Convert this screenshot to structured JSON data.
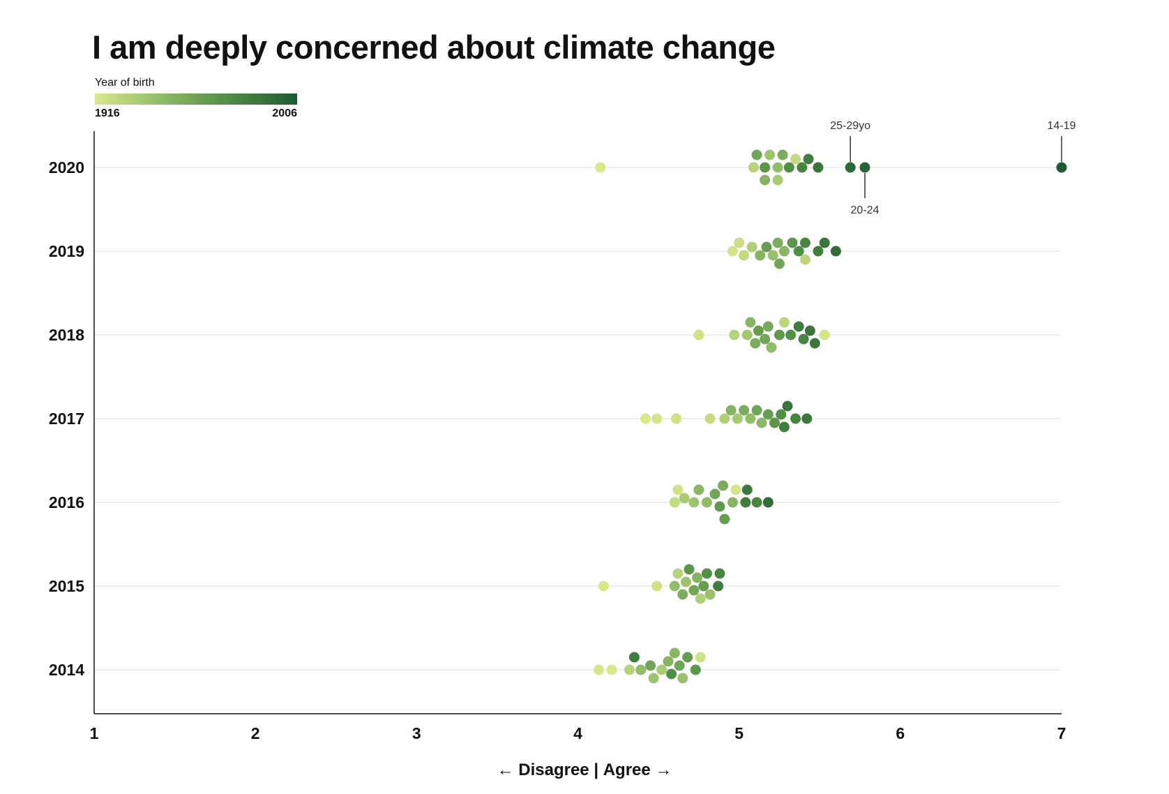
{
  "header": {
    "title": "I am deeply concerned about climate change"
  },
  "legend": {
    "title": "Year of birth",
    "min_label": "1916",
    "max_label": "2006",
    "colors": [
      "#d9e88b",
      "#8fba67",
      "#4f8c45",
      "#1f5a32"
    ]
  },
  "axis": {
    "left_arrow": "←",
    "left_label": "Disagree",
    "divider": "|",
    "right_label": "Agree",
    "right_arrow": "→"
  },
  "chart_data": {
    "type": "scatter",
    "title": "I am deeply concerned about climate change",
    "xlabel": "← Disagree | Agree →",
    "ylabel": "",
    "xlim": [
      1,
      7
    ],
    "xticks": [
      "1",
      "2",
      "3",
      "4",
      "5",
      "6",
      "7"
    ],
    "grid": true,
    "legend_position": "top-left",
    "color_scale": {
      "label": "Year of birth",
      "min": 1916,
      "max": 2006
    },
    "categories": [
      "2020",
      "2019",
      "2018",
      "2017",
      "2016",
      "2015",
      "2014"
    ],
    "series": [
      {
        "year": "2020",
        "points": [
          {
            "x": 4.14,
            "birth": 1916
          },
          {
            "x": 5.09,
            "birth": 1930
          },
          {
            "x": 5.11,
            "birth": 1960
          },
          {
            "x": 5.16,
            "birth": 1970
          },
          {
            "x": 5.16,
            "birth": 1950
          },
          {
            "x": 5.19,
            "birth": 1940
          },
          {
            "x": 5.24,
            "birth": 1945
          },
          {
            "x": 5.24,
            "birth": 1935
          },
          {
            "x": 5.27,
            "birth": 1955
          },
          {
            "x": 5.31,
            "birth": 1975
          },
          {
            "x": 5.35,
            "birth": 1925
          },
          {
            "x": 5.39,
            "birth": 1980
          },
          {
            "x": 5.43,
            "birth": 1985
          },
          {
            "x": 5.49,
            "birth": 1990
          },
          {
            "x": 5.69,
            "birth": 1997
          },
          {
            "x": 5.78,
            "birth": 2000
          },
          {
            "x": 7.0,
            "birth": 2006
          }
        ]
      },
      {
        "year": "2019",
        "points": [
          {
            "x": 4.96,
            "birth": 1918
          },
          {
            "x": 5.0,
            "birth": 1922
          },
          {
            "x": 5.03,
            "birth": 1926
          },
          {
            "x": 5.08,
            "birth": 1932
          },
          {
            "x": 5.13,
            "birth": 1950
          },
          {
            "x": 5.17,
            "birth": 1965
          },
          {
            "x": 5.21,
            "birth": 1942
          },
          {
            "x": 5.24,
            "birth": 1955
          },
          {
            "x": 5.25,
            "birth": 1960
          },
          {
            "x": 5.28,
            "birth": 1948
          },
          {
            "x": 5.33,
            "birth": 1970
          },
          {
            "x": 5.37,
            "birth": 1975
          },
          {
            "x": 5.41,
            "birth": 1980
          },
          {
            "x": 5.41,
            "birth": 1928
          },
          {
            "x": 5.49,
            "birth": 1985
          },
          {
            "x": 5.53,
            "birth": 1990
          },
          {
            "x": 5.6,
            "birth": 1995
          }
        ]
      },
      {
        "year": "2018",
        "points": [
          {
            "x": 4.75,
            "birth": 1920
          },
          {
            "x": 4.97,
            "birth": 1930
          },
          {
            "x": 5.05,
            "birth": 1938
          },
          {
            "x": 5.07,
            "birth": 1950
          },
          {
            "x": 5.1,
            "birth": 1955
          },
          {
            "x": 5.12,
            "birth": 1965
          },
          {
            "x": 5.16,
            "birth": 1960
          },
          {
            "x": 5.18,
            "birth": 1958
          },
          {
            "x": 5.2,
            "birth": 1945
          },
          {
            "x": 5.25,
            "birth": 1968
          },
          {
            "x": 5.28,
            "birth": 1928
          },
          {
            "x": 5.32,
            "birth": 1975
          },
          {
            "x": 5.37,
            "birth": 1985
          },
          {
            "x": 5.4,
            "birth": 1980
          },
          {
            "x": 5.44,
            "birth": 1990
          },
          {
            "x": 5.47,
            "birth": 1988
          },
          {
            "x": 5.53,
            "birth": 1918
          }
        ]
      },
      {
        "year": "2017",
        "points": [
          {
            "x": 4.42,
            "birth": 1916
          },
          {
            "x": 4.49,
            "birth": 1918
          },
          {
            "x": 4.61,
            "birth": 1920
          },
          {
            "x": 4.82,
            "birth": 1924
          },
          {
            "x": 4.91,
            "birth": 1932
          },
          {
            "x": 4.95,
            "birth": 1950
          },
          {
            "x": 4.99,
            "birth": 1936
          },
          {
            "x": 5.03,
            "birth": 1955
          },
          {
            "x": 5.07,
            "birth": 1945
          },
          {
            "x": 5.11,
            "birth": 1960
          },
          {
            "x": 5.14,
            "birth": 1948
          },
          {
            "x": 5.18,
            "birth": 1965
          },
          {
            "x": 5.22,
            "birth": 1970
          },
          {
            "x": 5.26,
            "birth": 1975
          },
          {
            "x": 5.28,
            "birth": 1985
          },
          {
            "x": 5.3,
            "birth": 1990
          },
          {
            "x": 5.35,
            "birth": 1980
          },
          {
            "x": 5.42,
            "birth": 1988
          }
        ]
      },
      {
        "year": "2016",
        "points": [
          {
            "x": 4.6,
            "birth": 1925
          },
          {
            "x": 4.62,
            "birth": 1920
          },
          {
            "x": 4.66,
            "birth": 1935
          },
          {
            "x": 4.72,
            "birth": 1940
          },
          {
            "x": 4.75,
            "birth": 1948
          },
          {
            "x": 4.8,
            "birth": 1945
          },
          {
            "x": 4.85,
            "birth": 1960
          },
          {
            "x": 4.88,
            "birth": 1968
          },
          {
            "x": 4.9,
            "birth": 1955
          },
          {
            "x": 4.91,
            "birth": 1965
          },
          {
            "x": 4.96,
            "birth": 1950
          },
          {
            "x": 4.98,
            "birth": 1918
          },
          {
            "x": 5.04,
            "birth": 1985
          },
          {
            "x": 5.05,
            "birth": 1988
          },
          {
            "x": 5.11,
            "birth": 1980
          },
          {
            "x": 5.18,
            "birth": 1995
          }
        ]
      },
      {
        "year": "2015",
        "points": [
          {
            "x": 4.16,
            "birth": 1916
          },
          {
            "x": 4.49,
            "birth": 1920
          },
          {
            "x": 4.6,
            "birth": 1945
          },
          {
            "x": 4.62,
            "birth": 1930
          },
          {
            "x": 4.65,
            "birth": 1955
          },
          {
            "x": 4.67,
            "birth": 1940
          },
          {
            "x": 4.69,
            "birth": 1970
          },
          {
            "x": 4.72,
            "birth": 1960
          },
          {
            "x": 4.74,
            "birth": 1950
          },
          {
            "x": 4.76,
            "birth": 1932
          },
          {
            "x": 4.78,
            "birth": 1965
          },
          {
            "x": 4.8,
            "birth": 1975
          },
          {
            "x": 4.82,
            "birth": 1942
          },
          {
            "x": 4.87,
            "birth": 1985
          },
          {
            "x": 4.88,
            "birth": 1980
          }
        ]
      },
      {
        "year": "2014",
        "points": [
          {
            "x": 4.13,
            "birth": 1918
          },
          {
            "x": 4.21,
            "birth": 1916
          },
          {
            "x": 4.32,
            "birth": 1930
          },
          {
            "x": 4.35,
            "birth": 1985
          },
          {
            "x": 4.39,
            "birth": 1945
          },
          {
            "x": 4.45,
            "birth": 1960
          },
          {
            "x": 4.47,
            "birth": 1940
          },
          {
            "x": 4.52,
            "birth": 1935
          },
          {
            "x": 4.56,
            "birth": 1950
          },
          {
            "x": 4.58,
            "birth": 1975
          },
          {
            "x": 4.6,
            "birth": 1948
          },
          {
            "x": 4.63,
            "birth": 1960
          },
          {
            "x": 4.65,
            "birth": 1942
          },
          {
            "x": 4.68,
            "birth": 1965
          },
          {
            "x": 4.73,
            "birth": 1970
          },
          {
            "x": 4.76,
            "birth": 1920
          }
        ]
      }
    ],
    "annotations": [
      {
        "text": "25-29yo",
        "year": "2020",
        "x": 5.69,
        "side": "above"
      },
      {
        "text": "20-24",
        "year": "2020",
        "x": 5.78,
        "side": "below"
      },
      {
        "text": "14-19",
        "year": "2020",
        "x": 7.0,
        "side": "above"
      }
    ]
  }
}
